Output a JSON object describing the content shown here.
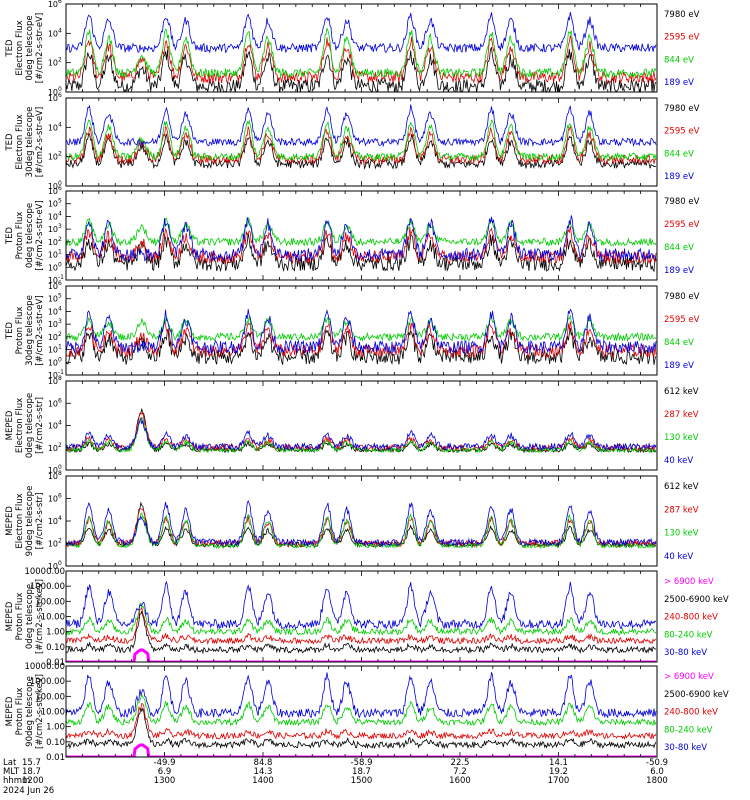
{
  "chart_data": [
    {
      "type": "line",
      "ylabel": [
        "TED",
        "Electron Flux",
        "0deg telescope",
        "[#/cm2-s-str-eV]"
      ],
      "ylog": true,
      "ylim_exp": [
        0,
        6
      ],
      "tick_exps": [
        0,
        2,
        4,
        6
      ],
      "series": [
        {
          "name": "7980 eV",
          "color": "#000000",
          "base": 0.4,
          "amp": 2.2,
          "noise": 0.5
        },
        {
          "name": "2595 eV",
          "color": "#e00000",
          "base": 1.0,
          "amp": 2.5,
          "noise": 0.4
        },
        {
          "name": "844 eV",
          "color": "#00cc00",
          "base": 1.3,
          "amp": 2.8,
          "noise": 0.3
        },
        {
          "name": "189 eV",
          "color": "#0000dd",
          "base": 3.0,
          "amp": 2.2,
          "noise": 0.3
        }
      ]
    },
    {
      "type": "line",
      "ylabel": [
        "TED",
        "Electron Flux",
        "30deg telescope",
        "[#/cm2-s-str-eV]"
      ],
      "ylog": true,
      "ylim_exp": [
        0,
        6
      ],
      "tick_exps": [
        0,
        2,
        4,
        6
      ],
      "series": [
        {
          "name": "7980 eV",
          "color": "#000000",
          "base": 1.5,
          "amp": 1.8,
          "noise": 0.3
        },
        {
          "name": "2595 eV",
          "color": "#e00000",
          "base": 1.8,
          "amp": 2.0,
          "noise": 0.3
        },
        {
          "name": "844 eV",
          "color": "#00cc00",
          "base": 2.0,
          "amp": 2.4,
          "noise": 0.25
        },
        {
          "name": "189 eV",
          "color": "#0000dd",
          "base": 3.0,
          "amp": 2.3,
          "noise": 0.25
        }
      ]
    },
    {
      "type": "line",
      "ylabel": [
        "TED",
        "Proton Flux",
        "0deg telescope",
        "[#/cm2-s-str-eV]"
      ],
      "ylog": true,
      "ylim_exp": [
        -1,
        6
      ],
      "tick_exps": [
        -1,
        0,
        1,
        2,
        3,
        4,
        5,
        6
      ],
      "series": [
        {
          "name": "7980 eV",
          "color": "#000000",
          "base": 0.3,
          "amp": 1.8,
          "noise": 0.6
        },
        {
          "name": "2595 eV",
          "color": "#e00000",
          "base": 0.8,
          "amp": 2.0,
          "noise": 0.5
        },
        {
          "name": "844 eV",
          "color": "#00cc00",
          "base": 2.0,
          "amp": 1.6,
          "noise": 0.3
        },
        {
          "name": "189 eV",
          "color": "#0000dd",
          "base": 1.0,
          "amp": 2.8,
          "noise": 0.5
        }
      ]
    },
    {
      "type": "line",
      "ylabel": [
        "TED",
        "Proton Flux",
        "30deg telescope",
        "[#/cm2-s-str-eV]"
      ],
      "ylog": true,
      "ylim_exp": [
        -1,
        6
      ],
      "tick_exps": [
        -1,
        0,
        1,
        2,
        3,
        4,
        5,
        6
      ],
      "series": [
        {
          "name": "7980 eV",
          "color": "#000000",
          "base": 0.4,
          "amp": 1.8,
          "noise": 0.6
        },
        {
          "name": "2595 eV",
          "color": "#e00000",
          "base": 0.9,
          "amp": 2.0,
          "noise": 0.5
        },
        {
          "name": "844 eV",
          "color": "#00cc00",
          "base": 2.0,
          "amp": 1.4,
          "noise": 0.3
        },
        {
          "name": "189 eV",
          "color": "#0000dd",
          "base": 1.2,
          "amp": 2.6,
          "noise": 0.5
        }
      ]
    },
    {
      "type": "line",
      "ylabel": [
        "MEPED",
        "Electron Flux",
        "0deg telescope",
        "[#/cm2-s-str]"
      ],
      "ylog": true,
      "ylim_exp": [
        0,
        8
      ],
      "tick_exps": [
        0,
        2,
        4,
        6,
        8
      ],
      "series": [
        {
          "name": "612 keV",
          "color": "#000000",
          "base": 1.8,
          "amp": 0.6,
          "noise": 0.2
        },
        {
          "name": "287 keV",
          "color": "#e00000",
          "base": 2.0,
          "amp": 0.8,
          "noise": 0.3
        },
        {
          "name": "130 keV",
          "color": "#00cc00",
          "base": 1.8,
          "amp": 0.8,
          "noise": 0.2
        },
        {
          "name": "40 keV",
          "color": "#0000dd",
          "base": 2.1,
          "amp": 1.2,
          "noise": 0.3
        }
      ]
    },
    {
      "type": "line",
      "ylabel": [
        "MEPED",
        "Electron Flux",
        "90deg telescope",
        "[#/cm2-s-str]"
      ],
      "ylog": true,
      "ylim_exp": [
        0,
        8
      ],
      "tick_exps": [
        0,
        2,
        4,
        6,
        8
      ],
      "series": [
        {
          "name": "612 keV",
          "color": "#000000",
          "base": 1.9,
          "amp": 1.5,
          "noise": 0.2
        },
        {
          "name": "287 keV",
          "color": "#e00000",
          "base": 2.0,
          "amp": 2.2,
          "noise": 0.3
        },
        {
          "name": "130 keV",
          "color": "#00cc00",
          "base": 1.8,
          "amp": 2.6,
          "noise": 0.2
        },
        {
          "name": "40 keV",
          "color": "#0000dd",
          "base": 2.1,
          "amp": 3.4,
          "noise": 0.3
        }
      ]
    },
    {
      "type": "line",
      "ylabel": [
        "MEPED",
        "Proton Flux",
        "0deg telescope",
        "[#/cm2-s-str-keV]"
      ],
      "ylog": true,
      "ylim_exp": [
        -2,
        4
      ],
      "tick_labels": [
        "10000.00",
        "1000.00",
        "100.00",
        "10.00",
        "1.00",
        "0.10",
        "0.01"
      ],
      "series": [
        {
          "name": "> 6900 keV",
          "color": "#ff00ff",
          "base": -2.2,
          "amp": 0.0,
          "noise": 0.0
        },
        {
          "name": "2500-6900 keV",
          "color": "#000000",
          "base": -1.2,
          "amp": 0.3,
          "noise": 0.2
        },
        {
          "name": "240-800 keV",
          "color": "#e00000",
          "base": -0.6,
          "amp": 0.3,
          "noise": 0.2
        },
        {
          "name": "80-240 keV",
          "color": "#00cc00",
          "base": 0.0,
          "amp": 0.8,
          "noise": 0.2
        },
        {
          "name": "30-80 keV",
          "color": "#0000dd",
          "base": 0.5,
          "amp": 2.5,
          "noise": 0.3
        }
      ]
    },
    {
      "type": "line",
      "ylabel": [
        "MEPED",
        "Proton Flux",
        "90deg telescope",
        "[#/cm2-s-str-keV]"
      ],
      "ylog": true,
      "ylim_exp": [
        -2,
        4
      ],
      "tick_labels": [
        "10000.00",
        "1000.00",
        "100.00",
        "10.00",
        "1.00",
        "0.10",
        "0.01"
      ],
      "series": [
        {
          "name": "> 6900 keV",
          "color": "#ff00ff",
          "base": -2.2,
          "amp": 0.0,
          "noise": 0.0
        },
        {
          "name": "2500-6900 keV",
          "color": "#000000",
          "base": -1.2,
          "amp": 0.3,
          "noise": 0.2
        },
        {
          "name": "240-800 keV",
          "color": "#e00000",
          "base": -0.6,
          "amp": 0.3,
          "noise": 0.2
        },
        {
          "name": "80-240 keV",
          "color": "#00cc00",
          "base": 0.3,
          "amp": 1.2,
          "noise": 0.2
        },
        {
          "name": "30-80 keV",
          "color": "#0000dd",
          "base": 0.9,
          "amp": 2.4,
          "noise": 0.3
        }
      ]
    }
  ],
  "xaxis": {
    "xlim_minutes": [
      0,
      360
    ],
    "row_labels": [
      "Lat",
      "MLT",
      "hhmm"
    ],
    "ticks": [
      {
        "lat": "15.7",
        "mlt": "18.7",
        "hhmm": "1200"
      },
      {
        "lat": "-49.9",
        "mlt": "6.9",
        "hhmm": "1300"
      },
      {
        "lat": "84.8",
        "mlt": "14.3",
        "hhmm": "1400"
      },
      {
        "lat": "-58.9",
        "mlt": "18.7",
        "hhmm": "1500"
      },
      {
        "lat": "22.5",
        "mlt": "7.2",
        "hhmm": "1600"
      },
      {
        "lat": "14.1",
        "mlt": "19.2",
        "hhmm": "1700"
      },
      {
        "lat": "-50.9",
        "mlt": "6.0",
        "hhmm": "1800"
      }
    ],
    "date_label": "2024 Jun 26"
  },
  "events": {
    "pass_centers_minutes": [
      20,
      67,
      117,
      165,
      216,
      265,
      313
    ],
    "saa_center_minutes": 46
  }
}
